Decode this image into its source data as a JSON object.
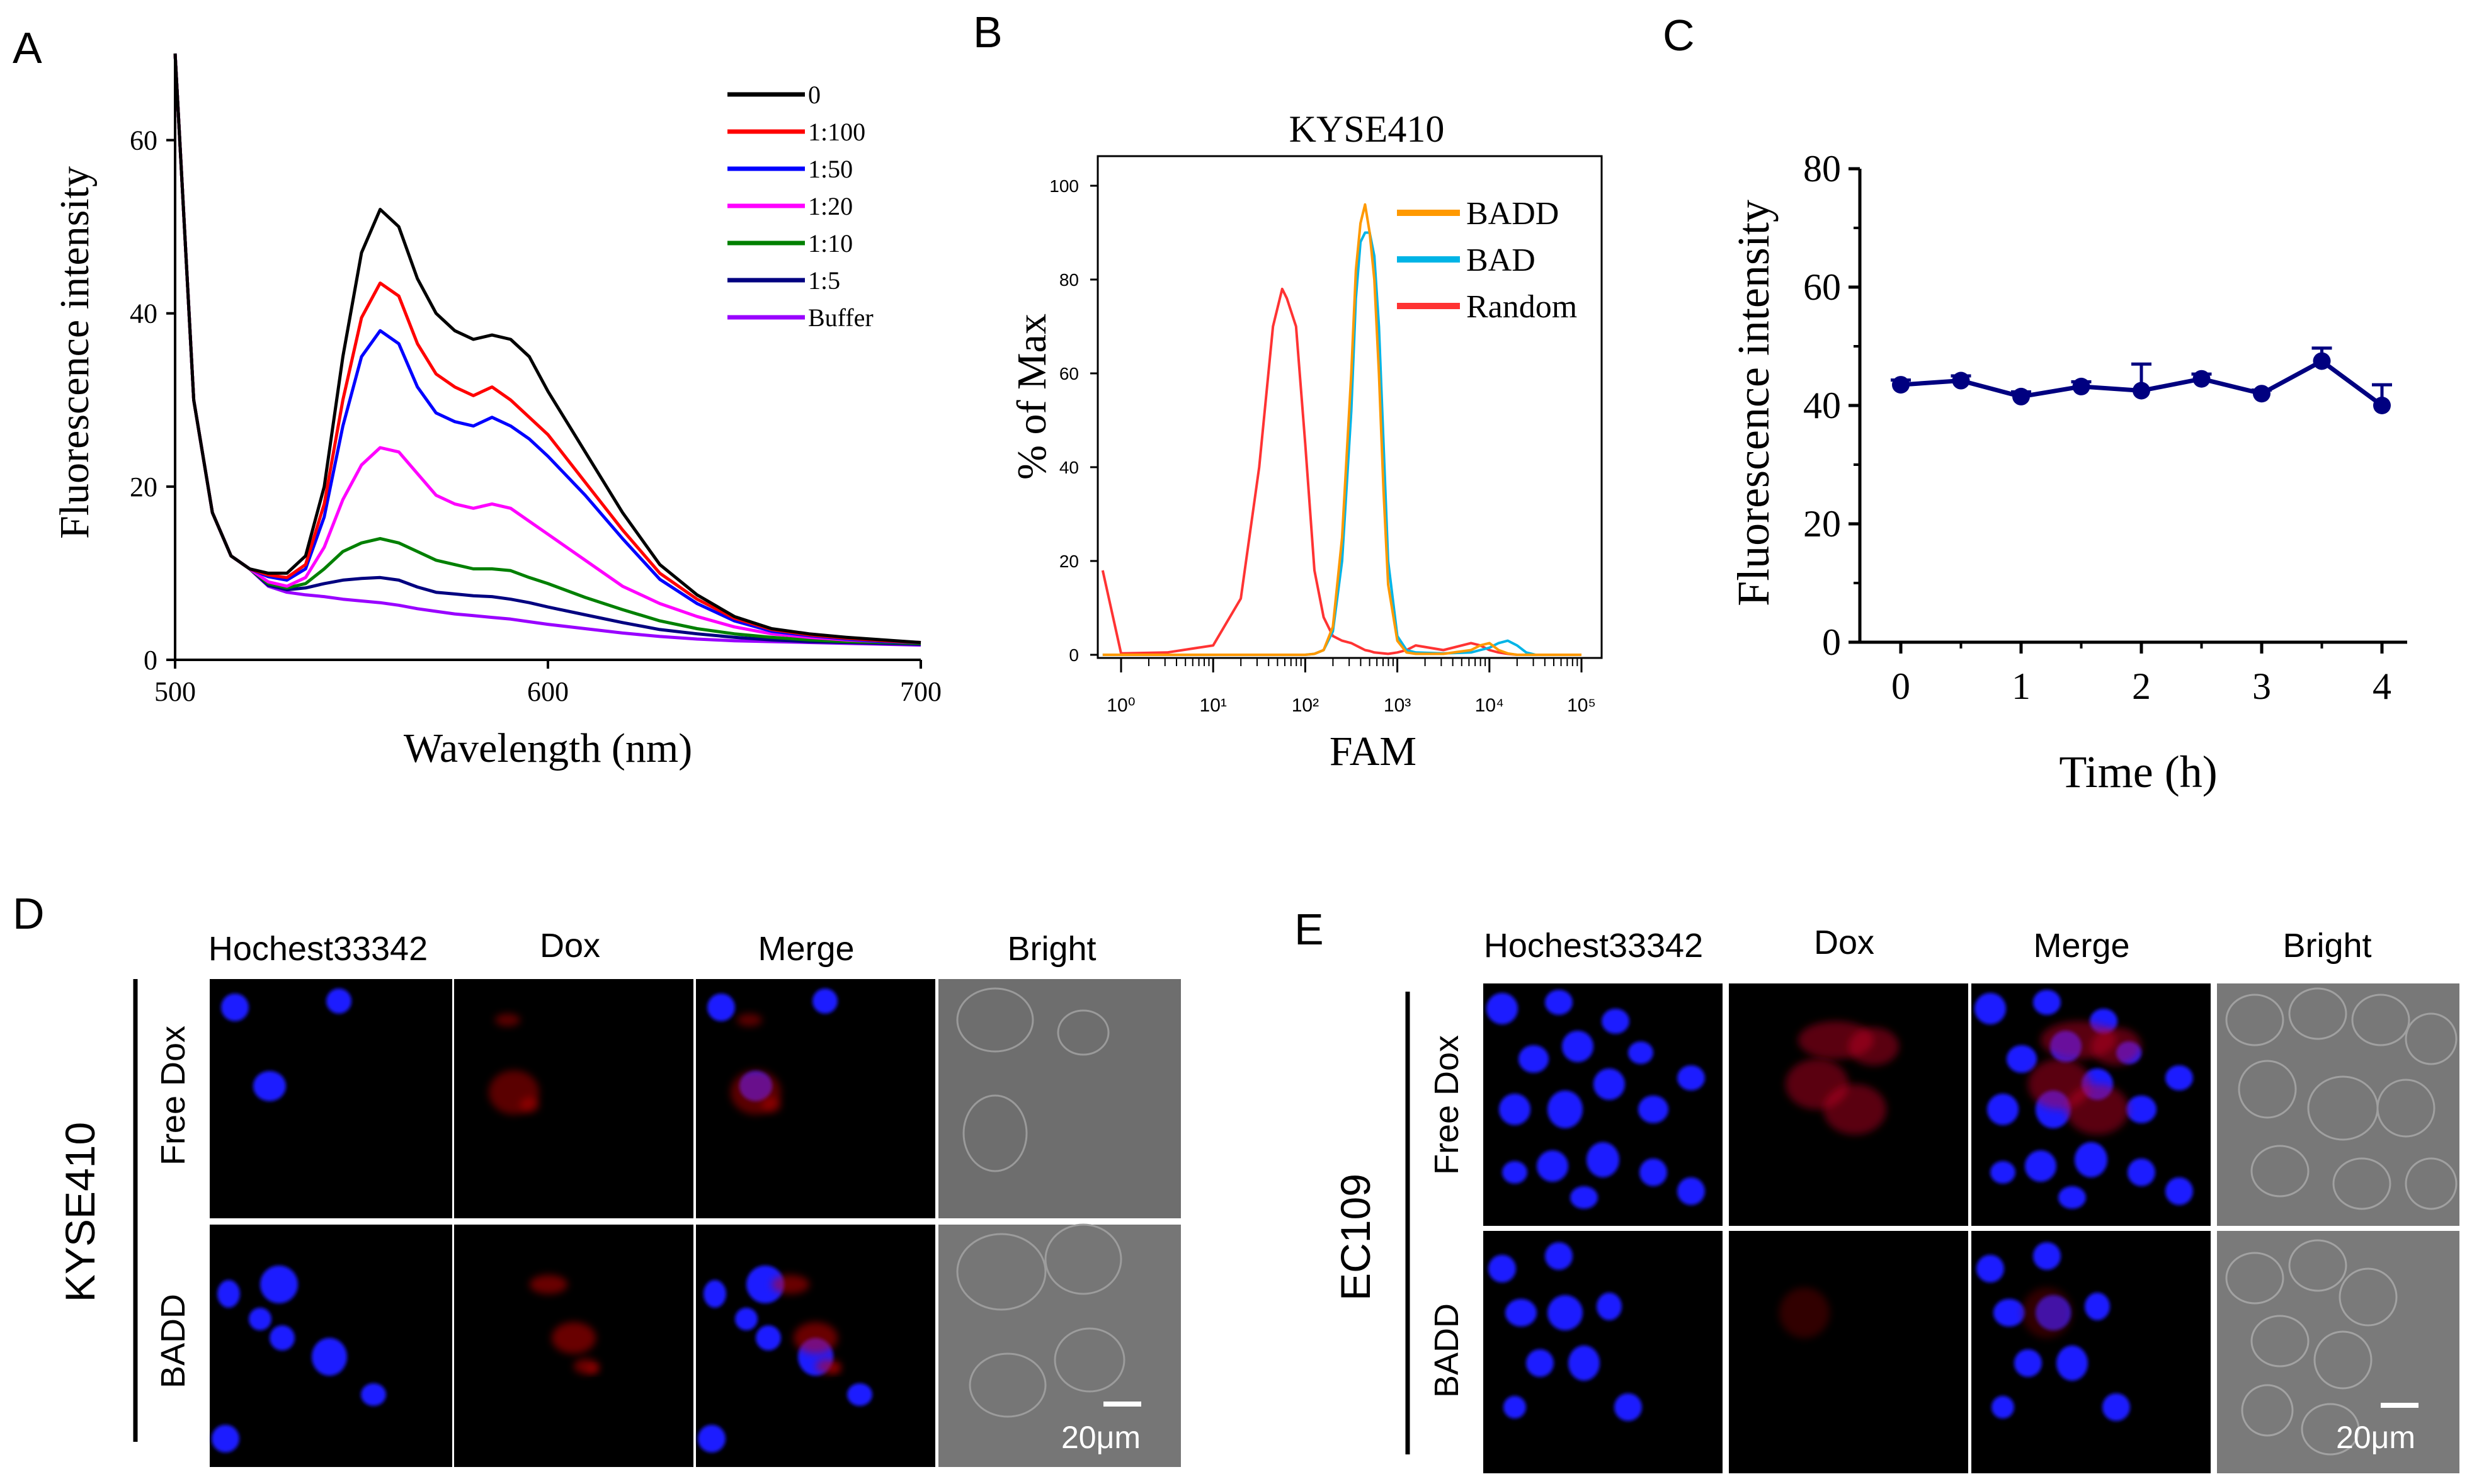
{
  "chart_data": [
    {
      "panel": "A",
      "type": "line",
      "xlabel": "Wavelength (nm)",
      "ylabel": "Fluorescence intensity",
      "xlim": [
        500,
        700
      ],
      "ylim": [
        0,
        70
      ],
      "xticks": [
        500,
        600,
        700
      ],
      "yticks": [
        0,
        20,
        40,
        60
      ],
      "grid": false,
      "legend_position": "top-right",
      "x": [
        500,
        505,
        510,
        515,
        520,
        525,
        530,
        535,
        540,
        545,
        550,
        555,
        560,
        565,
        570,
        575,
        580,
        585,
        590,
        595,
        600,
        610,
        620,
        630,
        640,
        650,
        660,
        670,
        680,
        690,
        700
      ],
      "series": [
        {
          "name": "0",
          "color": "#000000",
          "values": [
            70,
            30,
            17,
            12,
            10.5,
            10,
            10,
            12,
            20,
            35,
            47,
            52,
            50,
            44,
            40,
            38,
            37,
            37.5,
            37,
            35,
            31,
            24,
            17,
            11,
            7.5,
            5,
            3.6,
            3,
            2.6,
            2.3,
            2
          ]
        },
        {
          "name": "1:100",
          "color": "#ff0000",
          "values": [
            70,
            30,
            17,
            12,
            10.5,
            9.8,
            9.5,
            11,
            18,
            30,
            39.5,
            43.5,
            42,
            36.5,
            33,
            31.5,
            30.5,
            31.5,
            30,
            28,
            26,
            20.5,
            15,
            10,
            7,
            4.8,
            3.5,
            2.9,
            2.5,
            2.2,
            2
          ]
        },
        {
          "name": "1:50",
          "color": "#0000ff",
          "values": [
            70,
            30,
            17,
            12,
            10.5,
            9.6,
            9.2,
            10.5,
            16.5,
            27,
            35,
            38,
            36.5,
            31.5,
            28.5,
            27.5,
            27,
            28,
            27,
            25.5,
            23.5,
            19,
            14,
            9.3,
            6.5,
            4.5,
            3.3,
            2.8,
            2.4,
            2.1,
            2
          ]
        },
        {
          "name": "1:20",
          "color": "#ff00ff",
          "values": [
            70,
            30,
            17,
            12,
            10.5,
            9,
            8.5,
            9.5,
            13,
            18.5,
            22.5,
            24.5,
            24,
            21.5,
            19,
            18,
            17.5,
            18,
            17.5,
            16,
            14.5,
            11.5,
            8.5,
            6.5,
            5,
            3.8,
            3,
            2.6,
            2.3,
            2.1,
            2
          ]
        },
        {
          "name": "1:10",
          "color": "#008000",
          "values": [
            70,
            30,
            17,
            12,
            10.5,
            8.8,
            8.3,
            8.8,
            10.5,
            12.5,
            13.5,
            14,
            13.5,
            12.5,
            11.5,
            11,
            10.5,
            10.5,
            10.3,
            9.5,
            8.8,
            7.2,
            5.8,
            4.5,
            3.6,
            3,
            2.6,
            2.3,
            2.1,
            2,
            1.9
          ]
        },
        {
          "name": "1:5",
          "color": "#000080",
          "values": [
            70,
            30,
            17,
            12,
            10.5,
            8.6,
            8.1,
            8.3,
            8.8,
            9.2,
            9.4,
            9.5,
            9.2,
            8.4,
            7.8,
            7.6,
            7.4,
            7.3,
            7,
            6.6,
            6.1,
            5.2,
            4.3,
            3.5,
            3,
            2.6,
            2.3,
            2.1,
            2,
            1.9,
            1.8
          ]
        },
        {
          "name": "Buffer",
          "color": "#9900ff",
          "values": [
            70,
            30,
            17,
            12,
            10.5,
            8.5,
            7.8,
            7.5,
            7.3,
            7,
            6.8,
            6.6,
            6.3,
            5.9,
            5.6,
            5.3,
            5.1,
            4.9,
            4.7,
            4.4,
            4.1,
            3.6,
            3.1,
            2.7,
            2.4,
            2.2,
            2.1,
            2,
            1.9,
            1.8,
            1.7
          ]
        }
      ]
    },
    {
      "panel": "B",
      "type": "line",
      "title": "KYSE410",
      "xlabel": "FAM",
      "ylabel": "% of Max",
      "xscale": "log",
      "xlim": [
        0,
        5
      ],
      "ylim": [
        0,
        100
      ],
      "yticks": [
        0,
        20,
        40,
        60,
        80,
        100
      ],
      "xtick_labels": [
        "10⁰",
        "10¹",
        "10²",
        "10³",
        "10⁴",
        "10⁵"
      ],
      "grid": false,
      "legend_position": "top-right",
      "x_log10": [
        -0.2,
        0,
        0.5,
        1,
        1.3,
        1.5,
        1.65,
        1.75,
        1.8,
        1.9,
        2,
        2.1,
        2.2,
        2.3,
        2.4,
        2.5,
        2.55,
        2.6,
        2.65,
        2.7,
        2.75,
        2.8,
        2.85,
        2.9,
        3,
        3.1,
        3.2,
        3.5,
        3.8,
        3.9,
        4,
        4.1,
        4.2,
        4.3,
        4.4,
        4.5,
        4.7,
        5
      ],
      "series": [
        {
          "name": "BADD",
          "color": "#ff9900",
          "values": [
            0,
            0,
            0,
            0,
            0,
            0,
            0,
            0,
            0,
            0,
            0,
            0.2,
            1,
            6,
            25,
            60,
            82,
            92,
            96,
            90,
            80,
            60,
            35,
            15,
            3,
            0.5,
            0.2,
            0.2,
            1,
            2,
            2.5,
            1,
            0.3,
            0,
            0,
            0,
            0,
            0
          ]
        },
        {
          "name": "BAD",
          "color": "#00b4e6",
          "values": [
            0,
            0,
            0,
            0,
            0,
            0,
            0,
            0,
            0,
            0,
            0,
            0.2,
            1,
            5,
            20,
            52,
            76,
            88,
            90,
            90,
            85,
            70,
            45,
            20,
            4,
            1,
            0.5,
            0.3,
            0.5,
            1,
            1.5,
            2.5,
            3,
            2,
            0.5,
            0,
            0,
            0
          ]
        },
        {
          "name": "Random",
          "color": "#ff3333",
          "values": [
            18,
            0.3,
            0.5,
            2,
            12,
            40,
            70,
            78,
            76,
            70,
            45,
            18,
            8,
            4,
            3,
            2.5,
            2,
            1.5,
            1,
            0.8,
            0.5,
            0.4,
            0.3,
            0.2,
            0.5,
            1,
            2,
            1,
            2.5,
            2,
            1,
            0.5,
            0.2,
            0,
            0,
            0,
            0,
            0
          ]
        }
      ]
    },
    {
      "panel": "C",
      "type": "line",
      "xlabel": "Time (h)",
      "ylabel": "Fluorescence intensity",
      "xlim": [
        0,
        4.5
      ],
      "ylim": [
        0,
        80
      ],
      "xticks": [
        0,
        1,
        2,
        3,
        4
      ],
      "yticks": [
        0,
        20,
        40,
        60,
        80
      ],
      "grid": false,
      "series": [
        {
          "color": "#000080",
          "x": [
            0,
            0.5,
            1,
            1.5,
            2,
            2.5,
            3,
            3.5,
            4
          ],
          "values": [
            43.5,
            44.2,
            41.5,
            43.2,
            42.5,
            44.5,
            42,
            47.5,
            40
          ],
          "errors": [
            0.8,
            0.8,
            0.8,
            0.8,
            4.5,
            0.8,
            0.6,
            2.2,
            3.5
          ]
        }
      ]
    }
  ],
  "labels": {
    "panel_a": "A",
    "panel_b": "B",
    "panel_c": "C",
    "panel_d": "D",
    "panel_e": "E"
  },
  "micrographs": {
    "d": {
      "cell_line": "KYSE410",
      "columns": [
        "Hochest33342",
        "Dox",
        "Merge",
        "Bright"
      ],
      "rows": [
        "Free Dox",
        "BADD"
      ],
      "scale_bar": "20μm"
    },
    "e": {
      "cell_line": "EC109",
      "columns": [
        "Hochest33342",
        "Dox",
        "Merge",
        "Bright"
      ],
      "rows": [
        "Free Dox",
        "BADD"
      ],
      "scale_bar": "20μm"
    }
  }
}
